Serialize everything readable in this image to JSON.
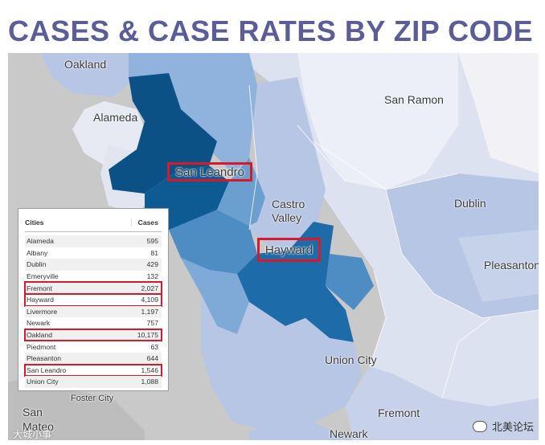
{
  "title": "CASES & CASE RATES BY ZIP CODE",
  "map": {
    "labels": {
      "oakland": "Oakland",
      "alameda": "Alameda",
      "san_ramon": "San Ramon",
      "castro_valley": "Castro\nValley",
      "dublin": "Dublin",
      "pleasanton": "Pleasanton",
      "union_city": "Union City",
      "fremont": "Fremont",
      "newark": "Newark",
      "foster_city": "Foster City",
      "san_mateo": "San\nMateo"
    },
    "highlighted": {
      "san_leandro": "San Leandro",
      "hayward": "Hayward"
    },
    "colors": {
      "darkest": "#0b5186",
      "dark": "#1d6ba8",
      "medium": "#4e8dc4",
      "light": "#8fb3dc",
      "lighter": "#b7c6e4",
      "lightest": "#dde2f1",
      "highlight_border": "#d7192a",
      "title": "#5b5e96"
    }
  },
  "table": {
    "headers": {
      "cities": "Cities",
      "cases": "Cases"
    },
    "rows": [
      {
        "city": "Alameda",
        "cases": "595"
      },
      {
        "city": "Albany",
        "cases": "81"
      },
      {
        "city": "Dublin",
        "cases": "429"
      },
      {
        "city": "Emeryville",
        "cases": "132"
      },
      {
        "city": "Fremont",
        "cases": "2,027"
      },
      {
        "city": "Hayward",
        "cases": "4,109"
      },
      {
        "city": "Livermore",
        "cases": "1,197"
      },
      {
        "city": "Newark",
        "cases": "757"
      },
      {
        "city": "Oakland",
        "cases": "10,175"
      },
      {
        "city": "Piedmont",
        "cases": "63"
      },
      {
        "city": "Pleasanton",
        "cases": "644"
      },
      {
        "city": "San Leandro",
        "cases": "1,546"
      },
      {
        "city": "Union City",
        "cases": "1,088"
      }
    ]
  },
  "watermarks": {
    "left": "大城小事",
    "right": "北美论坛"
  }
}
